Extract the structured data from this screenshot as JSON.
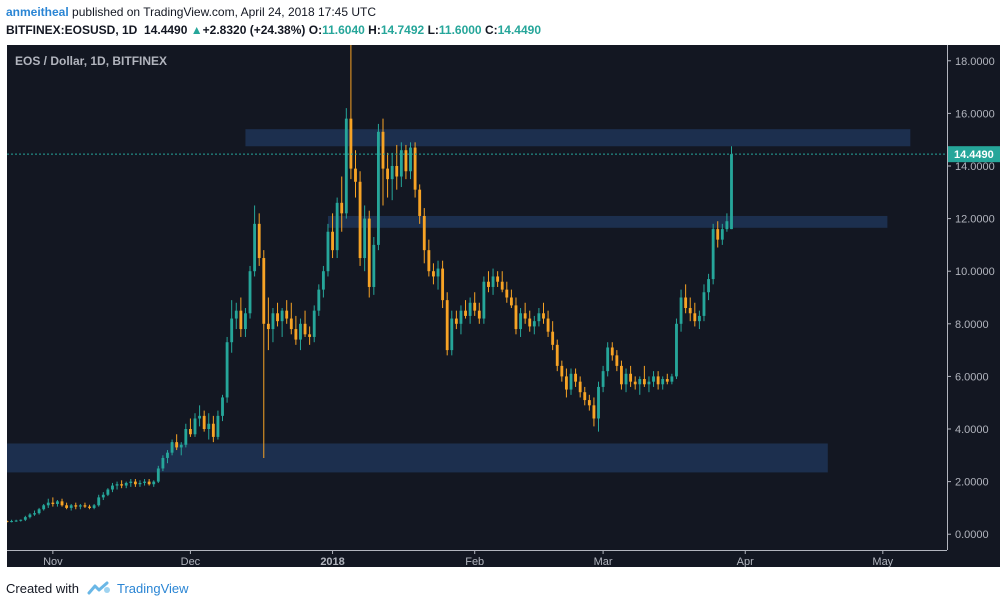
{
  "header": {
    "author": "anmeitheal",
    "published": "published on TradingView.com, April 24, 2018 17:45 UTC",
    "symbol": "BITFINEX:EOSUSD, 1D",
    "last": "14.4490",
    "change": "+2.8320 (+24.38%)",
    "o_label": "O:",
    "o_value": "11.6040",
    "h_label": "H:",
    "h_value": "14.7492",
    "l_label": "L:",
    "l_value": "11.6000",
    "c_label": "C:",
    "c_value": "14.4490"
  },
  "footer": {
    "created_with": "Created with",
    "brand": "TradingView"
  },
  "colors": {
    "background": "#131722",
    "up": "#26a69a",
    "down": "#f7a325",
    "zone": "#1e3456",
    "price_line": "#26a69a",
    "axis_text": "#b2b5be"
  },
  "chart_data": {
    "type": "candlestick",
    "title": "EOS / Dollar, 1D, BITFINEX",
    "ylim": [
      -0.6,
      18.6
    ],
    "y_ticks": [
      "0.0000",
      "2.0000",
      "4.0000",
      "6.0000",
      "8.0000",
      "10.0000",
      "12.0000",
      "14.0000",
      "16.0000",
      "18.0000"
    ],
    "x_ticks": [
      {
        "label": "Nov",
        "date": "2017-11-01"
      },
      {
        "label": "Dec",
        "date": "2017-12-01"
      },
      {
        "label": "2018",
        "date": "2018-01-01",
        "bold": true
      },
      {
        "label": "Feb",
        "date": "2018-02-01"
      },
      {
        "label": "Mar",
        "date": "2018-03-01"
      },
      {
        "label": "Apr",
        "date": "2018-04-01"
      },
      {
        "label": "May",
        "date": "2018-05-01"
      }
    ],
    "xlim": [
      "2017-10-22",
      "2018-05-15"
    ],
    "last_price": 14.449,
    "last_price_label": "14.4490",
    "zones": [
      {
        "from": "2017-10-22",
        "to": "2018-04-19",
        "y0": 2.35,
        "y1": 3.45
      },
      {
        "from": "2017-12-31",
        "to": "2018-05-02",
        "y0": 11.65,
        "y1": 12.1
      },
      {
        "from": "2017-12-13",
        "to": "2018-05-07",
        "y0": 14.75,
        "y1": 15.4
      }
    ],
    "start_date": "2017-10-22",
    "ohlc": [
      [
        0.5,
        0.52,
        0.45,
        0.48
      ],
      [
        0.48,
        0.55,
        0.45,
        0.5
      ],
      [
        0.5,
        0.55,
        0.47,
        0.52
      ],
      [
        0.52,
        0.56,
        0.48,
        0.55
      ],
      [
        0.55,
        0.7,
        0.5,
        0.65
      ],
      [
        0.65,
        0.8,
        0.6,
        0.75
      ],
      [
        0.75,
        0.9,
        0.7,
        0.8
      ],
      [
        0.8,
        1.0,
        0.75,
        0.95
      ],
      [
        0.95,
        1.15,
        0.9,
        1.1
      ],
      [
        1.1,
        1.35,
        1.0,
        1.2
      ],
      [
        1.2,
        1.4,
        1.05,
        1.15
      ],
      [
        1.15,
        1.3,
        1.05,
        1.25
      ],
      [
        1.25,
        1.35,
        1.05,
        1.1
      ],
      [
        1.1,
        1.2,
        0.95,
        1.0
      ],
      [
        1.0,
        1.15,
        0.9,
        1.1
      ],
      [
        1.1,
        1.2,
        0.95,
        1.05
      ],
      [
        1.05,
        1.15,
        0.95,
        1.1
      ],
      [
        1.1,
        1.2,
        1.0,
        1.05
      ],
      [
        1.05,
        1.12,
        0.95,
        1.0
      ],
      [
        1.0,
        1.15,
        0.95,
        1.1
      ],
      [
        1.1,
        1.5,
        1.05,
        1.4
      ],
      [
        1.4,
        1.6,
        1.3,
        1.5
      ],
      [
        1.5,
        1.75,
        1.45,
        1.7
      ],
      [
        1.7,
        1.95,
        1.6,
        1.85
      ],
      [
        1.85,
        2.0,
        1.7,
        1.9
      ],
      [
        1.9,
        2.05,
        1.75,
        1.85
      ],
      [
        1.85,
        2.0,
        1.75,
        1.95
      ],
      [
        1.95,
        2.1,
        1.8,
        2.0
      ],
      [
        2.0,
        2.1,
        1.8,
        1.9
      ],
      [
        1.9,
        2.05,
        1.8,
        1.95
      ],
      [
        1.95,
        2.1,
        1.85,
        2.0
      ],
      [
        2.0,
        2.1,
        1.85,
        1.9
      ],
      [
        1.9,
        2.05,
        1.8,
        2.0
      ],
      [
        2.0,
        2.6,
        1.95,
        2.5
      ],
      [
        2.5,
        3.0,
        2.4,
        2.9
      ],
      [
        2.9,
        3.2,
        2.7,
        3.1
      ],
      [
        3.1,
        3.6,
        3.0,
        3.5
      ],
      [
        3.5,
        3.8,
        3.2,
        3.3
      ],
      [
        3.3,
        3.5,
        3.0,
        3.4
      ],
      [
        3.4,
        4.2,
        3.3,
        4.0
      ],
      [
        4.0,
        4.4,
        3.7,
        3.8
      ],
      [
        3.8,
        4.6,
        3.7,
        4.4
      ],
      [
        4.4,
        4.9,
        4.1,
        4.5
      ],
      [
        4.5,
        4.7,
        3.9,
        4.0
      ],
      [
        4.0,
        4.6,
        3.6,
        4.2
      ],
      [
        4.2,
        4.5,
        3.5,
        3.7
      ],
      [
        3.7,
        4.7,
        3.6,
        4.5
      ],
      [
        4.5,
        5.3,
        4.3,
        5.2
      ],
      [
        5.2,
        7.5,
        5.0,
        7.3
      ],
      [
        7.3,
        8.9,
        6.9,
        8.2
      ],
      [
        8.2,
        8.8,
        7.8,
        8.5
      ],
      [
        8.5,
        9.0,
        7.5,
        7.8
      ],
      [
        7.8,
        8.6,
        7.5,
        8.4
      ],
      [
        8.4,
        10.2,
        8.2,
        10.0
      ],
      [
        10.0,
        12.5,
        9.8,
        11.8
      ],
      [
        11.8,
        12.2,
        10.2,
        10.5
      ],
      [
        10.5,
        10.8,
        2.9,
        8.0
      ],
      [
        8.0,
        9.0,
        7.0,
        7.8
      ],
      [
        7.8,
        8.6,
        7.3,
        8.4
      ],
      [
        8.4,
        8.8,
        7.9,
        8.1
      ],
      [
        8.1,
        8.6,
        7.5,
        8.5
      ],
      [
        8.5,
        8.9,
        8.0,
        8.2
      ],
      [
        8.2,
        8.8,
        7.6,
        7.8
      ],
      [
        7.8,
        8.3,
        7.2,
        7.4
      ],
      [
        7.4,
        8.2,
        7.0,
        8.0
      ],
      [
        8.0,
        8.5,
        7.5,
        7.6
      ],
      [
        7.6,
        7.9,
        7.2,
        7.5
      ],
      [
        7.5,
        8.7,
        7.3,
        8.5
      ],
      [
        8.5,
        9.5,
        8.3,
        9.3
      ],
      [
        9.3,
        10.2,
        9.0,
        10.0
      ],
      [
        10.0,
        11.8,
        9.8,
        11.5
      ],
      [
        11.5,
        12.2,
        10.5,
        10.8
      ],
      [
        10.8,
        12.8,
        10.5,
        12.6
      ],
      [
        12.6,
        13.6,
        11.5,
        12.2
      ],
      [
        12.2,
        16.2,
        12.0,
        15.8
      ],
      [
        15.8,
        18.7,
        13.5,
        13.9
      ],
      [
        13.9,
        14.6,
        12.8,
        13.4
      ],
      [
        13.4,
        13.8,
        10.2,
        10.5
      ],
      [
        10.5,
        12.5,
        10.0,
        12.0
      ],
      [
        12.0,
        12.3,
        9.0,
        9.4
      ],
      [
        9.4,
        11.3,
        9.1,
        11.0
      ],
      [
        11.0,
        15.6,
        10.8,
        15.3
      ],
      [
        15.3,
        15.8,
        12.5,
        13.9
      ],
      [
        13.9,
        14.5,
        12.8,
        13.5
      ],
      [
        13.5,
        14.5,
        12.7,
        14.0
      ],
      [
        14.0,
        14.8,
        13.1,
        13.6
      ],
      [
        13.6,
        14.9,
        13.2,
        14.6
      ],
      [
        14.6,
        14.8,
        13.5,
        13.8
      ],
      [
        13.8,
        14.9,
        13.5,
        14.7
      ],
      [
        14.7,
        14.9,
        12.8,
        13.1
      ],
      [
        13.1,
        13.3,
        11.8,
        12.1
      ],
      [
        12.1,
        12.4,
        10.3,
        10.8
      ],
      [
        10.8,
        11.2,
        9.8,
        10.0
      ],
      [
        10.0,
        10.3,
        9.5,
        9.8
      ],
      [
        9.8,
        10.4,
        9.3,
        10.1
      ],
      [
        10.1,
        10.4,
        8.6,
        8.9
      ],
      [
        8.9,
        9.2,
        6.8,
        7.0
      ],
      [
        7.0,
        8.5,
        6.8,
        8.2
      ],
      [
        8.2,
        8.5,
        7.8,
        8.0
      ],
      [
        8.0,
        8.7,
        7.6,
        8.5
      ],
      [
        8.5,
        8.9,
        8.2,
        8.3
      ],
      [
        8.3,
        9.0,
        8.0,
        8.8
      ],
      [
        8.8,
        9.2,
        8.3,
        8.5
      ],
      [
        8.5,
        8.8,
        8.0,
        8.2
      ],
      [
        8.2,
        9.8,
        8.0,
        9.6
      ],
      [
        9.6,
        10.0,
        9.2,
        9.4
      ],
      [
        9.4,
        10.1,
        9.1,
        9.8
      ],
      [
        9.8,
        10.0,
        9.4,
        9.6
      ],
      [
        9.6,
        10.0,
        9.2,
        9.3
      ],
      [
        9.3,
        9.6,
        8.8,
        9.0
      ],
      [
        9.0,
        9.3,
        8.6,
        8.7
      ],
      [
        8.7,
        9.0,
        7.6,
        7.8
      ],
      [
        7.8,
        8.6,
        7.5,
        8.4
      ],
      [
        8.4,
        8.8,
        8.0,
        8.2
      ],
      [
        8.2,
        8.5,
        7.7,
        7.9
      ],
      [
        7.9,
        8.3,
        7.6,
        8.1
      ],
      [
        8.1,
        8.6,
        7.9,
        8.4
      ],
      [
        8.4,
        8.8,
        8.0,
        8.2
      ],
      [
        8.2,
        8.5,
        7.5,
        7.7
      ],
      [
        7.7,
        8.1,
        7.0,
        7.2
      ],
      [
        7.2,
        7.4,
        6.2,
        6.4
      ],
      [
        6.4,
        6.6,
        5.8,
        6.0
      ],
      [
        6.0,
        6.3,
        5.2,
        5.5
      ],
      [
        5.5,
        6.3,
        5.3,
        6.1
      ],
      [
        6.1,
        6.3,
        5.6,
        5.8
      ],
      [
        5.8,
        6.0,
        5.2,
        5.4
      ],
      [
        5.4,
        5.6,
        4.9,
        5.1
      ],
      [
        5.1,
        5.3,
        4.7,
        4.9
      ],
      [
        4.9,
        5.2,
        4.1,
        4.4
      ],
      [
        4.4,
        5.8,
        3.9,
        5.6
      ],
      [
        5.6,
        6.4,
        5.4,
        6.2
      ],
      [
        6.2,
        7.3,
        6.0,
        7.1
      ],
      [
        7.1,
        7.3,
        6.6,
        6.8
      ],
      [
        6.8,
        7.0,
        6.2,
        6.4
      ],
      [
        6.4,
        6.6,
        5.5,
        5.7
      ],
      [
        5.7,
        6.3,
        5.4,
        6.1
      ],
      [
        6.1,
        6.4,
        5.6,
        5.8
      ],
      [
        5.8,
        6.0,
        5.5,
        5.7
      ],
      [
        5.7,
        6.0,
        5.3,
        5.9
      ],
      [
        5.9,
        6.4,
        5.6,
        5.7
      ],
      [
        5.7,
        6.0,
        5.4,
        5.8
      ],
      [
        5.8,
        6.2,
        5.6,
        6.0
      ],
      [
        6.0,
        6.2,
        5.5,
        5.7
      ],
      [
        5.7,
        6.0,
        5.5,
        5.9
      ],
      [
        5.9,
        6.1,
        5.7,
        5.8
      ],
      [
        5.8,
        6.1,
        5.7,
        6.0
      ],
      [
        6.0,
        8.2,
        5.9,
        8.0
      ],
      [
        8.0,
        9.3,
        7.7,
        9.0
      ],
      [
        9.0,
        9.5,
        8.4,
        8.6
      ],
      [
        8.6,
        9.0,
        8.1,
        8.4
      ],
      [
        8.4,
        8.8,
        7.9,
        8.1
      ],
      [
        8.1,
        8.5,
        7.8,
        8.3
      ],
      [
        8.3,
        9.5,
        8.1,
        9.2
      ],
      [
        9.2,
        9.9,
        8.9,
        9.7
      ],
      [
        9.7,
        11.8,
        9.5,
        11.6
      ],
      [
        11.6,
        11.9,
        10.9,
        11.2
      ],
      [
        11.2,
        11.8,
        11.0,
        11.6
      ],
      [
        11.6,
        12.2,
        11.5,
        11.9
      ],
      [
        11.6,
        14.75,
        11.6,
        14.45
      ]
    ]
  }
}
